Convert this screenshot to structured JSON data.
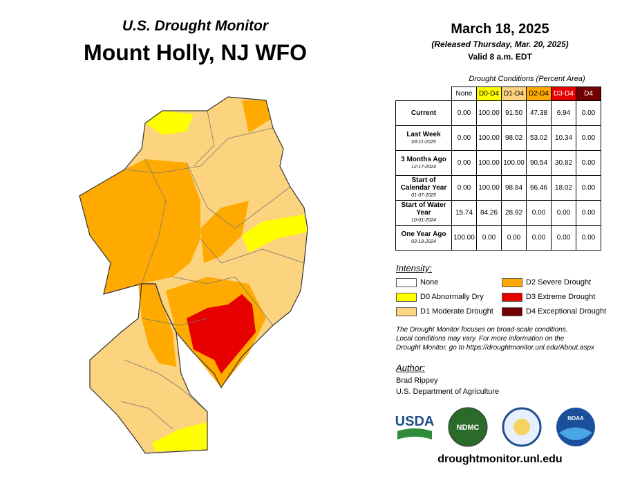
{
  "header": {
    "subtitle": "U.S. Drought Monitor",
    "title": "Mount Holly, NJ WFO"
  },
  "date": {
    "map_date": "March 18, 2025",
    "released": "(Released Thursday, Mar. 20, 2025)",
    "valid": "Valid 8 a.m. EDT"
  },
  "table": {
    "caption": "Drought Conditions (Percent Area)",
    "columns": [
      {
        "label": "None",
        "color": "#ffffff",
        "text_color": "#000000"
      },
      {
        "label": "D0-D4",
        "color": "#ffff00",
        "text_color": "#000000"
      },
      {
        "label": "D1-D4",
        "color": "#fcd37f",
        "text_color": "#000000"
      },
      {
        "label": "D2-D4",
        "color": "#ffaa00",
        "text_color": "#000000"
      },
      {
        "label": "D3-D4",
        "color": "#e60000",
        "text_color": "#ffffff"
      },
      {
        "label": "D4",
        "color": "#730000",
        "text_color": "#ffffff"
      }
    ],
    "rows": [
      {
        "label": "Current",
        "values": [
          "0.00",
          "100.00",
          "91.50",
          "47.38",
          "6.94",
          "0.00"
        ]
      },
      {
        "label": "Last Week",
        "date": "03-11-2025",
        "values": [
          "0.00",
          "100.00",
          "98.02",
          "53.02",
          "10.34",
          "0.00"
        ]
      },
      {
        "label": "3 Months Ago",
        "date": "12-17-2024",
        "values": [
          "0.00",
          "100.00",
          "100.00",
          "90.54",
          "30.82",
          "0.00"
        ]
      },
      {
        "label": "Start of Calendar Year",
        "date": "01-07-2025",
        "values": [
          "0.00",
          "100.00",
          "98.84",
          "66.46",
          "18.02",
          "0.00"
        ]
      },
      {
        "label": "Start of Water Year",
        "date": "10-01-2024",
        "values": [
          "15.74",
          "84.26",
          "28.92",
          "0.00",
          "0.00",
          "0.00"
        ]
      },
      {
        "label": "One Year Ago",
        "date": "03-19-2024",
        "values": [
          "100.00",
          "0.00",
          "0.00",
          "0.00",
          "0.00",
          "0.00"
        ]
      }
    ]
  },
  "legend": {
    "title": "Intensity:",
    "items": [
      {
        "label": "None",
        "color": "#ffffff"
      },
      {
        "label": "D0 Abnormally Dry",
        "color": "#ffff00"
      },
      {
        "label": "D1 Moderate Drought",
        "color": "#fcd37f"
      },
      {
        "label": "D2 Severe Drought",
        "color": "#ffaa00"
      },
      {
        "label": "D3 Extreme Drought",
        "color": "#e60000"
      },
      {
        "label": "D4 Exceptional Drought",
        "color": "#730000"
      }
    ]
  },
  "note": [
    "The Drought Monitor focuses on broad-scale conditions.",
    "Local conditions may vary. For more information on the",
    "Drought Monitor, go to https://droughtmonitor.unl.edu/About.aspx"
  ],
  "author": {
    "heading": "Author:",
    "name": "Brad Rippey",
    "org": "U.S. Department of Agriculture"
  },
  "logos": {
    "usda": "USDA",
    "ndmc": "NDMC",
    "noaa": "NOAA"
  },
  "footer": {
    "url": "droughtmonitor.unl.edu"
  }
}
